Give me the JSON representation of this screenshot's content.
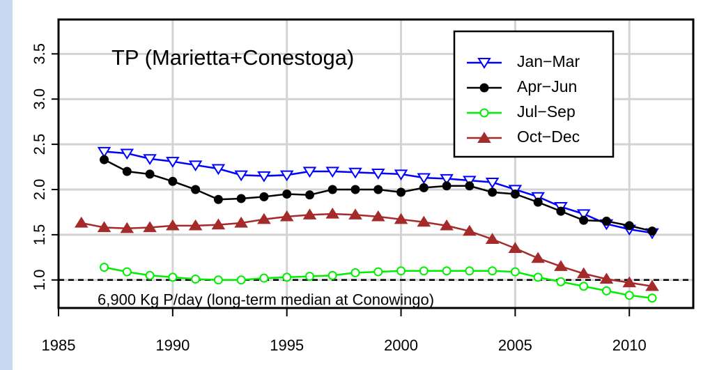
{
  "chart_data": {
    "type": "line",
    "annotations": [
      "TP (Marietta+Conestoga)",
      "6,900 Kg P/day (long-term median at Conowingo)"
    ],
    "reference_line": 1.0,
    "xlim": [
      1985,
      2012.8
    ],
    "xticks": [
      1985,
      1990,
      1995,
      2000,
      2005,
      2010
    ],
    "ylim": [
      0.69,
      3.88
    ],
    "yticks": [
      {
        "value": 1,
        "label": "1.0"
      },
      1.5,
      {
        "value": 2,
        "label": "2.0"
      },
      2.5,
      {
        "value": 3,
        "label": "3.0"
      },
      3.5
    ],
    "grid": true,
    "legend": "top-right",
    "series": [
      {
        "name": "Jan−Mar",
        "color": "#0000ff",
        "marker": "triangle-down-open",
        "x": [
          1987,
          1988,
          1989,
          1990,
          1991,
          1992,
          1993,
          1994,
          1995,
          1996,
          1997,
          1998,
          1999,
          2000,
          2001,
          2002,
          2003,
          2004,
          2005,
          2006,
          2007,
          2008,
          2009,
          2010,
          2011
        ],
        "values": [
          2.42,
          2.4,
          2.34,
          2.31,
          2.27,
          2.23,
          2.16,
          2.15,
          2.16,
          2.2,
          2.2,
          2.19,
          2.18,
          2.17,
          2.13,
          2.12,
          2.1,
          2.08,
          2.0,
          1.92,
          1.81,
          1.73,
          1.62,
          1.56,
          1.52
        ]
      },
      {
        "name": "Apr−Jun",
        "color": "#000000",
        "marker": "circle-filled",
        "x": [
          1987,
          1988,
          1989,
          1990,
          1991,
          1992,
          1993,
          1994,
          1995,
          1996,
          1997,
          1998,
          1999,
          2000,
          2001,
          2002,
          2003,
          2004,
          2005,
          2006,
          2007,
          2008,
          2009,
          2010,
          2011
        ],
        "values": [
          2.33,
          2.2,
          2.17,
          2.09,
          2.0,
          1.89,
          1.9,
          1.92,
          1.95,
          1.94,
          2.0,
          2.0,
          2.0,
          1.97,
          2.02,
          2.04,
          2.04,
          1.97,
          1.95,
          1.86,
          1.76,
          1.66,
          1.65,
          1.6,
          1.54
        ]
      },
      {
        "name": "Jul−Sep",
        "color": "#00ee00",
        "marker": "circle-open",
        "x": [
          1987,
          1988,
          1989,
          1990,
          1991,
          1992,
          1993,
          1994,
          1995,
          1996,
          1997,
          1998,
          1999,
          2000,
          2001,
          2002,
          2003,
          2004,
          2005,
          2006,
          2007,
          2008,
          2009,
          2010,
          2011
        ],
        "values": [
          1.14,
          1.09,
          1.05,
          1.03,
          1.01,
          1.0,
          1.0,
          1.02,
          1.03,
          1.04,
          1.05,
          1.08,
          1.09,
          1.1,
          1.1,
          1.1,
          1.1,
          1.1,
          1.09,
          1.03,
          0.98,
          0.93,
          0.88,
          0.83,
          0.8
        ]
      },
      {
        "name": "Oct−Dec",
        "color": "#a52a2a",
        "marker": "triangle-up-filled",
        "x": [
          1986,
          1987,
          1988,
          1989,
          1990,
          1991,
          1992,
          1993,
          1994,
          1995,
          1996,
          1997,
          1998,
          1999,
          2000,
          2001,
          2002,
          2003,
          2004,
          2005,
          2006,
          2007,
          2008,
          2009,
          2010,
          2011
        ],
        "values": [
          1.63,
          1.58,
          1.57,
          1.58,
          1.6,
          1.6,
          1.61,
          1.63,
          1.67,
          1.7,
          1.72,
          1.73,
          1.72,
          1.7,
          1.67,
          1.64,
          1.6,
          1.54,
          1.45,
          1.35,
          1.24,
          1.15,
          1.07,
          1.01,
          0.97,
          0.93
        ]
      }
    ]
  }
}
